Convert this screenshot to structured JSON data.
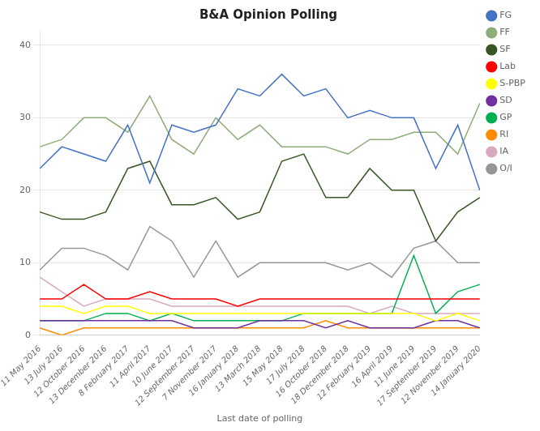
{
  "chart_data": {
    "type": "line",
    "title": "B&A Opinion Polling",
    "xlabel": "Last date of polling",
    "categories": [
      "11 May 2016",
      "13 July 2016",
      "12 October 2016",
      "13 December 2016",
      "8 February 2017",
      "11 April 2017",
      "10 June 2017",
      "12 September 2017",
      "7 November 2017",
      "16 January 2018",
      "13 March 2018",
      "15 May 2018",
      "17 July 2018",
      "16 October 2018",
      "18 December 2018",
      "12 February 2019",
      "16 April 2019",
      "11 June 2019",
      "17 September 2019",
      "12 November 2019",
      "14 January 2020"
    ],
    "series": [
      {
        "name": "FG",
        "color": "#4472C4",
        "values": [
          23,
          26,
          25,
          24,
          29,
          21,
          29,
          28,
          29,
          34,
          33,
          36,
          33,
          34,
          30,
          31,
          30,
          30,
          23,
          29,
          20
        ]
      },
      {
        "name": "FF",
        "color": "#8FAD78",
        "values": [
          26,
          27,
          30,
          30,
          28,
          33,
          27,
          25,
          30,
          27,
          29,
          26,
          26,
          26,
          25,
          27,
          27,
          28,
          28,
          25,
          32
        ]
      },
      {
        "name": "SF",
        "color": "#375623",
        "values": [
          17,
          16,
          16,
          17,
          23,
          24,
          18,
          18,
          19,
          16,
          17,
          24,
          25,
          19,
          19,
          23,
          20,
          20,
          13,
          17,
          19
        ]
      },
      {
        "name": "Lab",
        "color": "#FF0000",
        "values": [
          5,
          5,
          7,
          5,
          5,
          6,
          5,
          5,
          5,
          4,
          5,
          5,
          5,
          5,
          5,
          5,
          5,
          5,
          5,
          5,
          5
        ]
      },
      {
        "name": "S-PBP",
        "color": "#FFFF00",
        "values": [
          4,
          4,
          3,
          4,
          4,
          3,
          3,
          3,
          3,
          3,
          3,
          3,
          3,
          3,
          3,
          3,
          3,
          3,
          2,
          3,
          2
        ]
      },
      {
        "name": "SD",
        "color": "#7030A0",
        "values": [
          2,
          2,
          2,
          2,
          2,
          2,
          2,
          1,
          1,
          1,
          2,
          2,
          2,
          1,
          2,
          1,
          1,
          1,
          2,
          2,
          1
        ]
      },
      {
        "name": "GP",
        "color": "#00B050",
        "values": [
          2,
          2,
          2,
          3,
          3,
          2,
          3,
          2,
          2,
          2,
          2,
          2,
          3,
          3,
          3,
          3,
          3,
          11,
          3,
          6,
          7
        ]
      },
      {
        "name": "RI",
        "color": "#FF8C00",
        "values": [
          1,
          0,
          1,
          1,
          1,
          1,
          1,
          1,
          1,
          1,
          1,
          1,
          1,
          2,
          1,
          1,
          1,
          1,
          1,
          1,
          1
        ]
      },
      {
        "name": "IA",
        "color": "#D9AABF",
        "values": [
          8,
          6,
          4,
          5,
          5,
          5,
          4,
          4,
          4,
          4,
          4,
          4,
          4,
          4,
          4,
          3,
          4,
          3,
          3,
          3,
          3
        ]
      },
      {
        "name": "O/I",
        "color": "#969696",
        "values": [
          9,
          12,
          12,
          11,
          9,
          15,
          13,
          8,
          13,
          8,
          10,
          10,
          10,
          10,
          9,
          10,
          8,
          12,
          13,
          10,
          10
        ]
      }
    ],
    "ylim": [
      0,
      42
    ],
    "yticks": [
      0,
      10,
      20,
      30,
      40
    ],
    "grid": true,
    "legend": "right"
  }
}
